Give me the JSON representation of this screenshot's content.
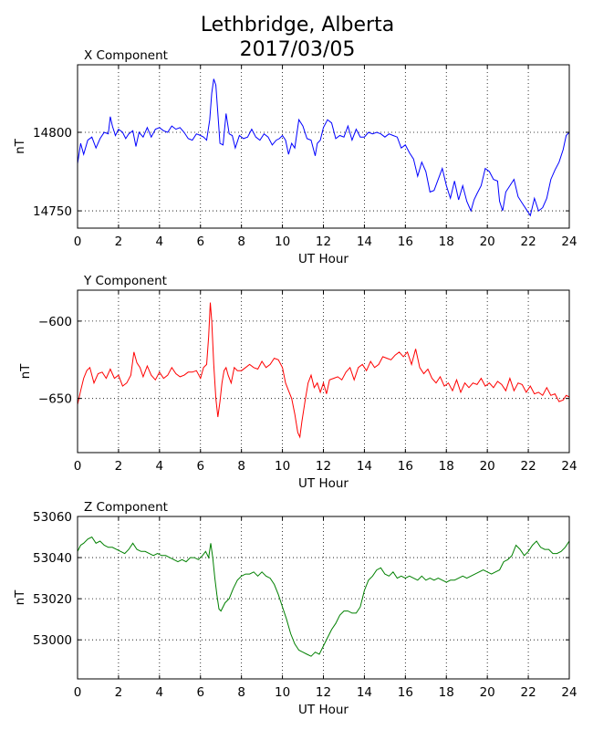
{
  "title_lines": [
    "Lethbridge, Alberta",
    "2017/03/05"
  ],
  "chart_data": [
    {
      "type": "line",
      "title": "X Component",
      "xlabel": "UT Hour",
      "ylabel": "nT",
      "xlim": [
        0,
        24
      ],
      "ylim": [
        14739,
        14843
      ],
      "xticks": [
        0,
        2,
        4,
        6,
        8,
        10,
        12,
        14,
        16,
        18,
        20,
        22,
        24
      ],
      "yticks": [
        14750,
        14800
      ],
      "grid": true,
      "series": [
        {
          "color": "#0000ff",
          "x": [
            0,
            0.15,
            0.3,
            0.5,
            0.7,
            0.9,
            1.1,
            1.3,
            1.5,
            1.6,
            1.7,
            1.85,
            2.0,
            2.2,
            2.35,
            2.5,
            2.7,
            2.85,
            3.0,
            3.2,
            3.4,
            3.6,
            3.8,
            4.0,
            4.2,
            4.4,
            4.6,
            4.8,
            5.0,
            5.2,
            5.4,
            5.6,
            5.8,
            6.0,
            6.15,
            6.3,
            6.45,
            6.55,
            6.65,
            6.75,
            6.85,
            6.95,
            7.1,
            7.25,
            7.4,
            7.55,
            7.7,
            7.9,
            8.1,
            8.3,
            8.5,
            8.7,
            8.9,
            9.1,
            9.3,
            9.5,
            9.7,
            9.85,
            10.0,
            10.15,
            10.3,
            10.45,
            10.6,
            10.8,
            11.0,
            11.2,
            11.4,
            11.6,
            11.7,
            11.85,
            12.0,
            12.2,
            12.4,
            12.6,
            12.8,
            13.0,
            13.2,
            13.4,
            13.6,
            13.8,
            14.0,
            14.2,
            14.4,
            14.6,
            14.8,
            15.0,
            15.2,
            15.4,
            15.6,
            15.8,
            16.0,
            16.2,
            16.4,
            16.6,
            16.8,
            17.0,
            17.2,
            17.4,
            17.6,
            17.8,
            18.0,
            18.2,
            18.4,
            18.6,
            18.8,
            19.0,
            19.2,
            19.35,
            19.5,
            19.7,
            19.9,
            20.1,
            20.3,
            20.5,
            20.6,
            20.75,
            20.9,
            21.1,
            21.3,
            21.5,
            21.7,
            21.9,
            22.1,
            22.3,
            22.5,
            22.7,
            22.9,
            23.1,
            23.3,
            23.5,
            23.7,
            23.85,
            24.0
          ],
          "y": [
            14780,
            14793,
            14786,
            14795,
            14797,
            14790,
            14796,
            14800,
            14799,
            14810,
            14804,
            14798,
            14802,
            14800,
            14796,
            14799,
            14801,
            14791,
            14800,
            14797,
            14803,
            14797,
            14802,
            14803,
            14801,
            14800,
            14804,
            14802,
            14803,
            14800,
            14796,
            14795,
            14799,
            14798,
            14797,
            14795,
            14808,
            14825,
            14834,
            14830,
            14812,
            14793,
            14792,
            14812,
            14799,
            14798,
            14790,
            14798,
            14796,
            14797,
            14802,
            14797,
            14795,
            14799,
            14797,
            14792,
            14795,
            14796,
            14798,
            14795,
            14786,
            14793,
            14790,
            14808,
            14804,
            14796,
            14795,
            14785,
            14793,
            14795,
            14803,
            14808,
            14806,
            14796,
            14798,
            14797,
            14804,
            14795,
            14802,
            14797,
            14797,
            14800,
            14799,
            14800,
            14799,
            14797,
            14799,
            14798,
            14797,
            14790,
            14792,
            14787,
            14783,
            14772,
            14781,
            14775,
            14762,
            14763,
            14770,
            14777,
            14766,
            14758,
            14769,
            14757,
            14766,
            14756,
            14750,
            14757,
            14761,
            14766,
            14777,
            14775,
            14770,
            14769,
            14756,
            14750,
            14762,
            14766,
            14770,
            14759,
            14755,
            14751,
            14747,
            14758,
            14750,
            14752,
            14758,
            14770,
            14776,
            14781,
            14789,
            14798,
            14800
          ]
        }
      ]
    },
    {
      "type": "line",
      "title": "Y Component",
      "xlabel": "UT Hour",
      "ylabel": "nT",
      "xlim": [
        0,
        24
      ],
      "ylim": [
        -685,
        -580
      ],
      "xticks": [
        0,
        2,
        4,
        6,
        8,
        10,
        12,
        14,
        16,
        18,
        20,
        22,
        24
      ],
      "yticks": [
        -600,
        -650
      ],
      "grid": true,
      "series": [
        {
          "color": "#ff0000",
          "x": [
            0,
            0.15,
            0.3,
            0.45,
            0.6,
            0.8,
            1.0,
            1.2,
            1.4,
            1.6,
            1.8,
            2.0,
            2.2,
            2.4,
            2.6,
            2.75,
            2.9,
            3.05,
            3.2,
            3.4,
            3.6,
            3.8,
            4.0,
            4.2,
            4.4,
            4.6,
            4.8,
            5.0,
            5.2,
            5.4,
            5.6,
            5.8,
            6.0,
            6.15,
            6.3,
            6.4,
            6.48,
            6.55,
            6.65,
            6.75,
            6.85,
            6.95,
            7.05,
            7.15,
            7.25,
            7.35,
            7.5,
            7.65,
            7.8,
            8.0,
            8.2,
            8.4,
            8.6,
            8.8,
            9.0,
            9.2,
            9.4,
            9.6,
            9.8,
            10.0,
            10.15,
            10.3,
            10.45,
            10.6,
            10.75,
            10.85,
            10.95,
            11.1,
            11.25,
            11.4,
            11.55,
            11.7,
            11.85,
            12.0,
            12.15,
            12.3,
            12.5,
            12.7,
            12.9,
            13.1,
            13.3,
            13.5,
            13.7,
            13.9,
            14.1,
            14.3,
            14.5,
            14.7,
            14.9,
            15.1,
            15.3,
            15.5,
            15.7,
            15.9,
            16.1,
            16.3,
            16.5,
            16.7,
            16.9,
            17.1,
            17.3,
            17.5,
            17.7,
            17.9,
            18.1,
            18.3,
            18.5,
            18.7,
            18.9,
            19.1,
            19.3,
            19.5,
            19.7,
            19.9,
            20.1,
            20.3,
            20.5,
            20.7,
            20.9,
            21.1,
            21.3,
            21.5,
            21.7,
            21.9,
            22.1,
            22.3,
            22.5,
            22.7,
            22.9,
            23.1,
            23.3,
            23.5,
            23.7,
            23.85,
            24.0
          ],
          "y": [
            -654,
            -645,
            -637,
            -632,
            -630,
            -640,
            -634,
            -633,
            -637,
            -631,
            -637,
            -635,
            -642,
            -640,
            -635,
            -620,
            -627,
            -630,
            -636,
            -629,
            -635,
            -638,
            -633,
            -637,
            -635,
            -630,
            -634,
            -636,
            -635,
            -633,
            -633,
            -632,
            -637,
            -630,
            -628,
            -610,
            -588,
            -600,
            -628,
            -650,
            -662,
            -652,
            -640,
            -632,
            -630,
            -635,
            -640,
            -630,
            -632,
            -632,
            -630,
            -628,
            -630,
            -631,
            -626,
            -630,
            -628,
            -624,
            -625,
            -630,
            -640,
            -645,
            -650,
            -660,
            -672,
            -675,
            -665,
            -652,
            -640,
            -635,
            -643,
            -640,
            -646,
            -640,
            -647,
            -638,
            -637,
            -636,
            -638,
            -633,
            -630,
            -638,
            -630,
            -628,
            -632,
            -626,
            -630,
            -628,
            -623,
            -624,
            -625,
            -622,
            -620,
            -623,
            -620,
            -628,
            -618,
            -630,
            -634,
            -631,
            -637,
            -640,
            -636,
            -642,
            -640,
            -645,
            -638,
            -646,
            -640,
            -643,
            -640,
            -641,
            -637,
            -642,
            -640,
            -643,
            -639,
            -641,
            -645,
            -637,
            -645,
            -640,
            -641,
            -646,
            -642,
            -647,
            -646,
            -648,
            -643,
            -648,
            -647,
            -652,
            -651,
            -648,
            -649
          ]
        }
      ]
    },
    {
      "type": "line",
      "title": "Z Component",
      "xlabel": "UT Hour",
      "ylabel": "nT",
      "xlim": [
        0,
        24
      ],
      "ylim": [
        52981,
        53060
      ],
      "xticks": [
        0,
        2,
        4,
        6,
        8,
        10,
        12,
        14,
        16,
        18,
        20,
        22,
        24
      ],
      "yticks": [
        53000,
        53020,
        53040,
        53060
      ],
      "grid": true,
      "series": [
        {
          "color": "#008000",
          "x": [
            0,
            0.15,
            0.3,
            0.5,
            0.7,
            0.9,
            1.1,
            1.3,
            1.5,
            1.7,
            1.9,
            2.1,
            2.3,
            2.5,
            2.7,
            2.9,
            3.1,
            3.3,
            3.5,
            3.7,
            3.9,
            4.1,
            4.3,
            4.5,
            4.7,
            4.9,
            5.1,
            5.3,
            5.5,
            5.7,
            5.9,
            6.1,
            6.25,
            6.4,
            6.5,
            6.6,
            6.7,
            6.8,
            6.9,
            7.0,
            7.2,
            7.4,
            7.6,
            7.8,
            8.0,
            8.2,
            8.4,
            8.6,
            8.8,
            9.0,
            9.2,
            9.4,
            9.6,
            9.8,
            10.0,
            10.2,
            10.4,
            10.6,
            10.8,
            11.0,
            11.2,
            11.4,
            11.6,
            11.8,
            12.0,
            12.2,
            12.4,
            12.6,
            12.8,
            13.0,
            13.2,
            13.4,
            13.6,
            13.8,
            14.0,
            14.2,
            14.4,
            14.6,
            14.8,
            15.0,
            15.2,
            15.4,
            15.6,
            15.8,
            16.0,
            16.2,
            16.4,
            16.6,
            16.8,
            17.0,
            17.2,
            17.4,
            17.6,
            17.8,
            18.0,
            18.2,
            18.4,
            18.6,
            18.8,
            19.0,
            19.2,
            19.4,
            19.6,
            19.8,
            20.0,
            20.2,
            20.4,
            20.6,
            20.8,
            21.0,
            21.2,
            21.4,
            21.6,
            21.8,
            22.0,
            22.2,
            22.4,
            22.6,
            22.8,
            23.0,
            23.2,
            23.4,
            23.6,
            23.8,
            24.0
          ],
          "y": [
            53043,
            53046,
            53047,
            53049,
            53050,
            53047,
            53048,
            53046,
            53045,
            53045,
            53044,
            53043,
            53042,
            53044,
            53047,
            53044,
            53043,
            53043,
            53042,
            53041,
            53042,
            53041,
            53041,
            53040,
            53039,
            53038,
            53039,
            53038,
            53040,
            53040,
            53039,
            53041,
            53043,
            53040,
            53047,
            53040,
            53030,
            53022,
            53015,
            53014,
            53018,
            53020,
            53025,
            53029,
            53031,
            53032,
            53032,
            53033,
            53031,
            53033,
            53031,
            53030,
            53027,
            53022,
            53016,
            53010,
            53003,
            52998,
            52995,
            52994,
            52993,
            52992,
            52994,
            52993,
            52997,
            53001,
            53005,
            53008,
            53012,
            53014,
            53014,
            53013,
            53013,
            53016,
            53024,
            53029,
            53031,
            53034,
            53035,
            53032,
            53031,
            53033,
            53030,
            53031,
            53030,
            53031,
            53030,
            53029,
            53031,
            53029,
            53030,
            53029,
            53030,
            53029,
            53028,
            53029,
            53029,
            53030,
            53031,
            53030,
            53031,
            53032,
            53033,
            53034,
            53033,
            53032,
            53033,
            53034,
            53038,
            53039,
            53041,
            53046,
            53044,
            53041,
            53043,
            53046,
            53048,
            53045,
            53044,
            53044,
            53042,
            53042,
            53043,
            53045,
            53048
          ]
        }
      ]
    }
  ]
}
